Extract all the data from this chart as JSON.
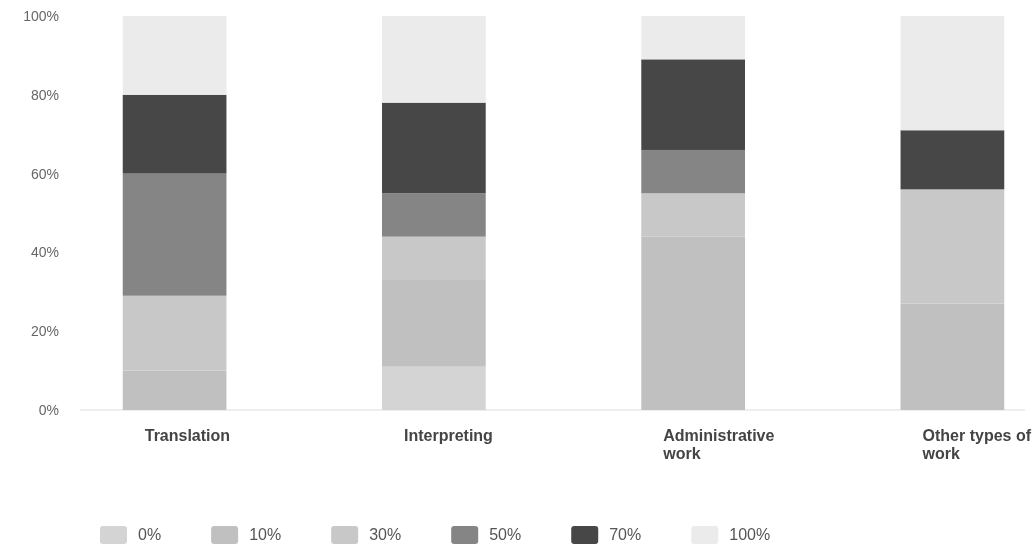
{
  "chart_data": {
    "type": "bar",
    "stacked": true,
    "categories": [
      "Translation",
      "Interpreting",
      "Administrative work",
      "Other types of work"
    ],
    "series": [
      {
        "name": "0%",
        "color": "#d4d4d4",
        "values": [
          0,
          11,
          0,
          0
        ]
      },
      {
        "name": "10%",
        "color": "#c0c0c0",
        "values": [
          10,
          22,
          44,
          27
        ]
      },
      {
        "name": "30%",
        "color": "#c8c8c8",
        "values": [
          19,
          11,
          11,
          29
        ]
      },
      {
        "name": "50%",
        "color": "#858585",
        "values": [
          31,
          11,
          11,
          0
        ]
      },
      {
        "name": "70%",
        "color": "#474747",
        "values": [
          20,
          23,
          23,
          15
        ]
      },
      {
        "name": "100%",
        "color": "#ebebeb",
        "values": [
          20,
          22,
          11,
          29
        ]
      }
    ],
    "ylim": [
      0,
      100
    ],
    "yticks": [
      {
        "value": 0,
        "label": "0%"
      },
      {
        "value": 20,
        "label": "20%"
      },
      {
        "value": 40,
        "label": "40%"
      },
      {
        "value": 60,
        "label": "60%"
      },
      {
        "value": 80,
        "label": "80%"
      },
      {
        "value": 100,
        "label": "100%"
      }
    ],
    "legend": "bottom left"
  }
}
